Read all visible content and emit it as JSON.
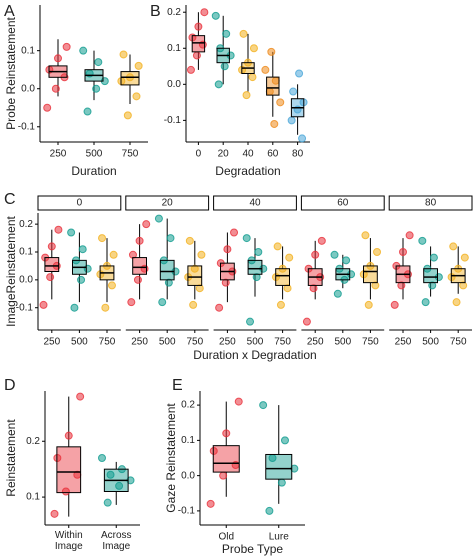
{
  "chart_data": [
    {
      "type": "box",
      "panel_label": "A",
      "xlabel": "Duration",
      "ylabel": "Probe Reinstatement",
      "categories": [
        "250",
        "500",
        "750"
      ],
      "colors": [
        "#e8303a",
        "#0f9b8e",
        "#f2b01e"
      ],
      "ylim": [
        -0.14,
        0.22
      ],
      "yticks": [
        {
          "value": -0.1,
          "label": "-0.1"
        },
        {
          "value": 0,
          "label": "0.0"
        },
        0.1
      ],
      "stats": [
        [
          -0.02,
          0.03,
          0.045,
          0.06,
          0.13
        ],
        [
          -0.03,
          0.02,
          0.035,
          0.05,
          0.1
        ],
        [
          -0.04,
          0.01,
          0.03,
          0.045,
          0.09
        ]
      ],
      "points": [
        [
          -0.05,
          0,
          0.03,
          0.05,
          0.08,
          0.11
        ],
        [
          -0.06,
          0,
          0.02,
          0.04,
          0.07,
          0.1
        ],
        [
          -0.07,
          -0.02,
          0.02,
          0.03,
          0.06,
          0.09
        ]
      ]
    },
    {
      "type": "box",
      "panel_label": "B",
      "xlabel": "Degradation",
      "categories": [
        "0",
        "20",
        "40",
        "60",
        "80"
      ],
      "colors": [
        "#e8303a",
        "#0f9b8e",
        "#f2b01e",
        "#ee8a1a",
        "#4aa6d8"
      ],
      "ylim": [
        -0.16,
        0.22
      ],
      "yticks": [
        {
          "value": -0.1,
          "label": "-0.1"
        },
        {
          "value": 0,
          "label": "0.0"
        },
        0.1,
        0.2
      ],
      "stats": [
        [
          0.04,
          0.09,
          0.115,
          0.135,
          0.2
        ],
        [
          0,
          0.06,
          0.08,
          0.1,
          0.19
        ],
        [
          -0.02,
          0.03,
          0.045,
          0.06,
          0.14
        ],
        [
          -0.09,
          -0.03,
          -0.01,
          0.02,
          0.09
        ],
        [
          -0.14,
          -0.09,
          -0.065,
          -0.04,
          0
        ]
      ],
      "points": [
        [
          0.04,
          0.08,
          0.11,
          0.13,
          0.16,
          0.2
        ],
        [
          0,
          0.05,
          0.08,
          0.1,
          0.14,
          0.19
        ],
        [
          -0.03,
          0.02,
          0.04,
          0.06,
          0.1,
          0.14
        ],
        [
          -0.11,
          -0.05,
          -0.02,
          0.01,
          0.04,
          0.09
        ],
        [
          -0.15,
          -0.1,
          -0.07,
          -0.05,
          -0.02,
          0.03
        ]
      ]
    },
    {
      "type": "faceted-box",
      "panel_label": "C",
      "xlabel": "Duration x Degradation",
      "ylabel": "ImageReinstatement",
      "categories": [
        "250",
        "500",
        "750"
      ],
      "colors": [
        "#e8303a",
        "#0f9b8e",
        "#f2b01e"
      ],
      "ylim": [
        -0.18,
        0.24
      ],
      "yticks": [
        {
          "value": -0.1,
          "label": "-0.1"
        },
        {
          "value": 0,
          "label": "0.0"
        },
        0.1,
        0.2
      ],
      "facets": [
        {
          "label": "0",
          "stats": [
            [
              -0.07,
              0.03,
              0.05,
              0.08,
              0.18
            ],
            [
              -0.08,
              0.02,
              0.045,
              0.07,
              0.17
            ],
            [
              -0.08,
              0,
              0.025,
              0.05,
              0.15
            ]
          ],
          "points": [
            [
              -0.09,
              0.01,
              0.05,
              0.08,
              0.12,
              0.18
            ],
            [
              -0.1,
              0,
              0.04,
              0.07,
              0.11,
              0.17
            ],
            [
              -0.1,
              -0.02,
              0.02,
              0.05,
              0.09,
              0.15
            ]
          ]
        },
        {
          "label": "20",
          "stats": [
            [
              -0.07,
              0.02,
              0.045,
              0.08,
              0.2
            ],
            [
              -0.07,
              0,
              0.03,
              0.07,
              0.22
            ],
            [
              -0.07,
              -0.02,
              0.01,
              0.05,
              0.14
            ]
          ],
          "points": [
            [
              -0.08,
              0,
              0.04,
              0.09,
              0.14,
              0.2
            ],
            [
              -0.08,
              -0.01,
              0.03,
              0.07,
              0.15,
              0.22
            ],
            [
              -0.09,
              -0.03,
              0.01,
              0.04,
              0.09,
              0.14
            ]
          ]
        },
        {
          "label": "40",
          "stats": [
            [
              -0.08,
              0,
              0.03,
              0.06,
              0.17
            ],
            [
              -0.06,
              0.02,
              0.04,
              0.07,
              0.15
            ],
            [
              -0.07,
              -0.02,
              0.015,
              0.04,
              0.12
            ]
          ],
          "points": [
            [
              -0.1,
              -0.01,
              0.03,
              0.06,
              0.11,
              0.17
            ],
            [
              -0.15,
              0.01,
              0.04,
              0.07,
              0.1,
              0.15
            ],
            [
              -0.09,
              -0.03,
              0.01,
              0.04,
              0.08,
              0.12
            ]
          ]
        },
        {
          "label": "60",
          "stats": [
            [
              -0.07,
              -0.02,
              0.01,
              0.04,
              0.14
            ],
            [
              -0.03,
              0,
              0.02,
              0.04,
              0.09
            ],
            [
              -0.07,
              -0.01,
              0.03,
              0.05,
              0.15
            ]
          ],
          "points": [
            [
              -0.15,
              -0.03,
              0.01,
              0.04,
              0.09,
              0.14
            ],
            [
              -0.05,
              0,
              0.02,
              0.04,
              0.07,
              0.09
            ],
            [
              -0.09,
              -0.02,
              0.02,
              0.05,
              0.1,
              0.16
            ]
          ]
        },
        {
          "label": "80",
          "stats": [
            [
              -0.07,
              -0.01,
              0.02,
              0.05,
              0.15
            ],
            [
              -0.06,
              -0.01,
              0.01,
              0.04,
              0.12
            ],
            [
              -0.05,
              -0.01,
              0.015,
              0.04,
              0.12
            ]
          ],
          "points": [
            [
              -0.09,
              -0.02,
              0.02,
              0.05,
              0.1,
              0.16
            ],
            [
              -0.08,
              -0.02,
              0.01,
              0.04,
              0.08,
              0.14
            ],
            [
              -0.08,
              -0.02,
              0.01,
              0.04,
              0.08,
              0.12
            ]
          ]
        }
      ]
    },
    {
      "type": "box",
      "panel_label": "D",
      "ylabel": "Reinstatement",
      "categories": [
        "Within Image",
        "Across Image"
      ],
      "colors": [
        "#e8303a",
        "#0f9b8e"
      ],
      "ylim": [
        0.05,
        0.29
      ],
      "yticks": [
        0.1,
        0.2
      ],
      "stats": [
        [
          0.065,
          0.108,
          0.145,
          0.19,
          0.28
        ],
        [
          0.086,
          0.11,
          0.13,
          0.15,
          0.163
        ]
      ],
      "points": [
        [
          0.07,
          0.11,
          0.14,
          0.17,
          0.21,
          0.28
        ],
        [
          0.09,
          0.12,
          0.13,
          0.14,
          0.15,
          0.17
        ]
      ]
    },
    {
      "type": "box",
      "panel_label": "E",
      "xlabel": "Probe Type",
      "ylabel": "Gaze Reinstatement",
      "categories": [
        "Old",
        "Lure"
      ],
      "colors": [
        "#e8303a",
        "#0f9b8e"
      ],
      "ylim": [
        -0.14,
        0.24
      ],
      "yticks": [
        {
          "value": -0.1,
          "label": "-0.1"
        },
        {
          "value": 0,
          "label": "0.0"
        },
        0.1,
        0.2
      ],
      "stats": [
        [
          -0.06,
          0.01,
          0.035,
          0.085,
          0.21
        ],
        [
          -0.08,
          -0.01,
          0.02,
          0.06,
          0.2
        ]
      ],
      "points": [
        [
          -0.08,
          0,
          0.03,
          0.07,
          0.12,
          0.21
        ],
        [
          -0.1,
          -0.02,
          0.02,
          0.05,
          0.1,
          0.2
        ]
      ]
    }
  ]
}
